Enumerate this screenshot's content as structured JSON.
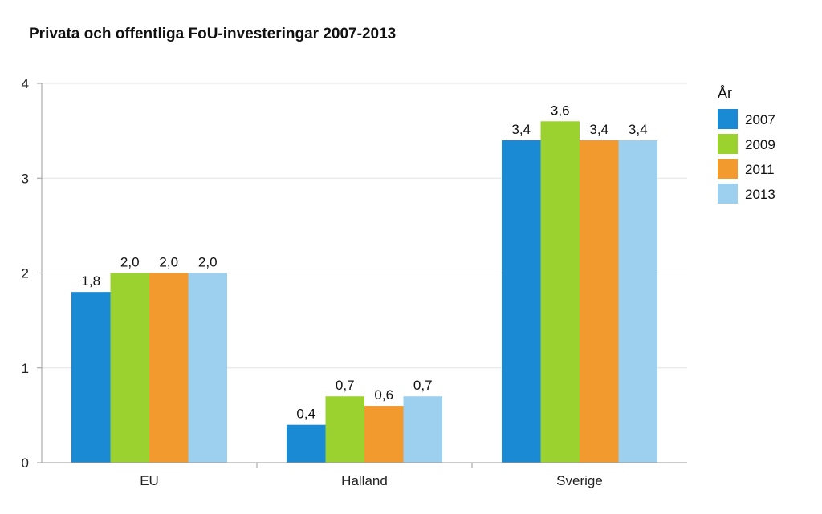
{
  "chart_data": {
    "type": "bar",
    "title": "Privata och offentliga FoU-investeringar 2007-2013",
    "categories": [
      "EU",
      "Halland",
      "Sverige"
    ],
    "series": [
      {
        "name": "2007",
        "color": "#1a8ad4",
        "values": [
          1.8,
          0.4,
          3.4
        ],
        "labels": [
          "1,8",
          "0,4",
          "3,4"
        ]
      },
      {
        "name": "2009",
        "color": "#9bd22f",
        "values": [
          2.0,
          0.7,
          3.6
        ],
        "labels": [
          "2,0",
          "0,7",
          "3,6"
        ]
      },
      {
        "name": "2011",
        "color": "#f39a2e",
        "values": [
          2.0,
          0.6,
          3.4
        ],
        "labels": [
          "2,0",
          "0,6",
          "3,4"
        ]
      },
      {
        "name": "2013",
        "color": "#9dcfee",
        "values": [
          2.0,
          0.7,
          3.4
        ],
        "labels": [
          "2,0",
          "0,7",
          "3,4"
        ]
      }
    ],
    "ylim": [
      0,
      4
    ],
    "yticks": [
      0,
      1,
      2,
      3,
      4
    ],
    "xlabel": "",
    "ylabel": "",
    "legend_title": "År",
    "legend_position": "top-right",
    "grid": true
  }
}
